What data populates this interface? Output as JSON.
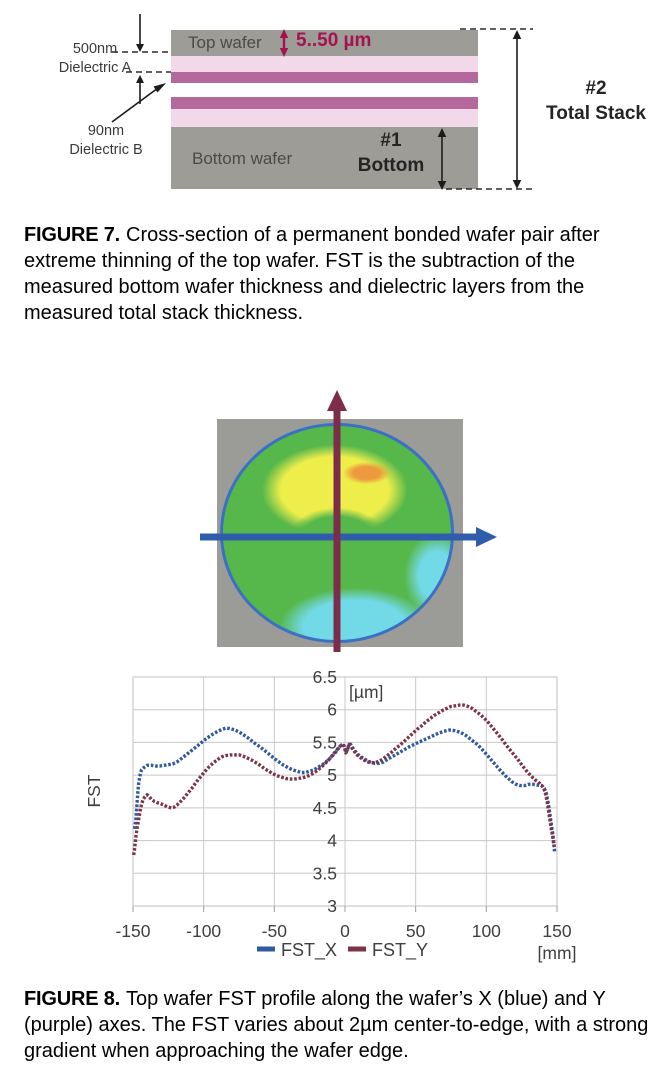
{
  "colors": {
    "wafer-gray": "#9d9c97",
    "pink-light": "#f1d9e9",
    "pink-dark": "#b4689c",
    "crimson": "#a5134f",
    "label-dark": "#3a3a3a",
    "map-gray": "#9b9b97",
    "map-green": "#56b74b",
    "map-yellow": "#eeee4b",
    "map-orange": "#ec9a3d",
    "map-cyan": "#72d9e6",
    "map-rim": "#3a70c6",
    "map-x-arrow": "#2f5dab",
    "map-y-arrow": "#7b2d4a",
    "diagram-arrow": "#1c1c1c"
  },
  "figure7": {
    "labels": {
      "dim_500nm": "500nm",
      "dielectric_a": "Dielectric A",
      "dim_90nm": "90nm",
      "dielectric_b": "Dielectric B",
      "top_wafer": "Top wafer",
      "thickness_range": "5..50 µm",
      "bottom_wafer": "Bottom wafer",
      "num1": "#1",
      "bottom": "Bottom",
      "num2": "#2",
      "total_stack": "Total Stack"
    },
    "caption": {
      "label": "FIGURE 7.",
      "text": "Cross-section of a permanent bonded wafer pair after extreme thinning of the top wafer. FST is the subtraction of the measured bottom wafer thickness and dielectric layers from the measured total stack thickness."
    }
  },
  "figure8": {
    "caption": {
      "label": "FIGURE 8.",
      "text": "Top wafer FST profile along the wafer’s X (blue) and Y (purple) axes. The FST varies about 2µm center-to-edge, with a strong gradient when approaching the wafer edge."
    }
  },
  "chart_data": {
    "type": "scatter",
    "title": "",
    "xlabel": "[mm]",
    "ylabel": "FST",
    "y_unit_label": "[µm]",
    "xlim": [
      -150,
      150
    ],
    "ylim": [
      3,
      6.5
    ],
    "x_ticks": [
      -150,
      -100,
      -50,
      0,
      50,
      100,
      150
    ],
    "y_ticks": [
      3,
      3.5,
      4,
      4.5,
      5,
      5.5,
      6,
      6.5
    ],
    "grid": true,
    "legend_position": "bottom",
    "series": [
      {
        "name": "FST_X",
        "color": "#30599e",
        "points": [
          [
            -149,
            4.18
          ],
          [
            -148,
            4.3
          ],
          [
            -147.5,
            4.45
          ],
          [
            -147,
            4.6
          ],
          [
            -146.5,
            4.75
          ],
          [
            -146,
            4.88
          ],
          [
            -145,
            5.0
          ],
          [
            -144,
            5.08
          ],
          [
            -142,
            5.12
          ],
          [
            -140,
            5.15
          ],
          [
            -137,
            5.15
          ],
          [
            -134,
            5.14
          ],
          [
            -131,
            5.14
          ],
          [
            -128,
            5.15
          ],
          [
            -125,
            5.16
          ],
          [
            -122,
            5.17
          ],
          [
            -119,
            5.2
          ],
          [
            -116,
            5.25
          ],
          [
            -113,
            5.3
          ],
          [
            -110,
            5.35
          ],
          [
            -106,
            5.42
          ],
          [
            -102,
            5.49
          ],
          [
            -98,
            5.56
          ],
          [
            -94,
            5.62
          ],
          [
            -90,
            5.67
          ],
          [
            -87,
            5.7
          ],
          [
            -84,
            5.72
          ],
          [
            -81,
            5.71
          ],
          [
            -78,
            5.69
          ],
          [
            -75,
            5.66
          ],
          [
            -72,
            5.62
          ],
          [
            -68,
            5.56
          ],
          [
            -64,
            5.49
          ],
          [
            -60,
            5.43
          ],
          [
            -56,
            5.36
          ],
          [
            -52,
            5.29
          ],
          [
            -48,
            5.22
          ],
          [
            -44,
            5.16
          ],
          [
            -40,
            5.11
          ],
          [
            -37,
            5.08
          ],
          [
            -34,
            5.06
          ],
          [
            -31,
            5.04
          ],
          [
            -28,
            5.04
          ],
          [
            -25,
            5.06
          ],
          [
            -22,
            5.08
          ],
          [
            -19,
            5.12
          ],
          [
            -16,
            5.16
          ],
          [
            -13,
            5.21
          ],
          [
            -10,
            5.27
          ],
          [
            -7,
            5.34
          ],
          [
            -5,
            5.4
          ],
          [
            -3,
            5.45
          ],
          [
            -1.5,
            5.48
          ],
          [
            -0.5,
            5.44
          ],
          [
            0.5,
            5.35
          ],
          [
            1.5,
            5.38
          ],
          [
            3,
            5.48
          ],
          [
            4,
            5.47
          ],
          [
            5,
            5.43
          ],
          [
            7,
            5.37
          ],
          [
            9,
            5.32
          ],
          [
            12,
            5.27
          ],
          [
            15,
            5.23
          ],
          [
            18,
            5.2
          ],
          [
            21,
            5.18
          ],
          [
            24,
            5.18
          ],
          [
            27,
            5.2
          ],
          [
            30,
            5.24
          ],
          [
            34,
            5.29
          ],
          [
            38,
            5.34
          ],
          [
            42,
            5.39
          ],
          [
            46,
            5.44
          ],
          [
            50,
            5.48
          ],
          [
            54,
            5.52
          ],
          [
            58,
            5.56
          ],
          [
            62,
            5.6
          ],
          [
            66,
            5.64
          ],
          [
            70,
            5.67
          ],
          [
            74,
            5.69
          ],
          [
            78,
            5.68
          ],
          [
            82,
            5.65
          ],
          [
            86,
            5.6
          ],
          [
            90,
            5.53
          ],
          [
            94,
            5.46
          ],
          [
            98,
            5.37
          ],
          [
            102,
            5.27
          ],
          [
            106,
            5.17
          ],
          [
            110,
            5.07
          ],
          [
            114,
            4.98
          ],
          [
            118,
            4.9
          ],
          [
            121,
            4.86
          ],
          [
            124,
            4.84
          ],
          [
            127,
            4.84
          ],
          [
            130,
            4.86
          ],
          [
            133,
            4.86
          ],
          [
            136,
            4.85
          ],
          [
            139,
            4.84
          ],
          [
            141,
            4.8
          ],
          [
            142.5,
            4.72
          ],
          [
            144,
            4.55
          ],
          [
            145,
            4.4
          ],
          [
            146,
            4.25
          ],
          [
            147,
            4.1
          ],
          [
            147.8,
            3.95
          ],
          [
            148.3,
            3.82
          ]
        ]
      },
      {
        "name": "FST_Y",
        "color": "#7c3247",
        "points": [
          [
            -149.5,
            3.78
          ],
          [
            -149,
            3.85
          ],
          [
            -148.5,
            3.95
          ],
          [
            -148,
            4.05
          ],
          [
            -147,
            4.2
          ],
          [
            -146,
            4.33
          ],
          [
            -145,
            4.45
          ],
          [
            -144,
            4.55
          ],
          [
            -143,
            4.62
          ],
          [
            -141.5,
            4.67
          ],
          [
            -140,
            4.7
          ],
          [
            -138.5,
            4.67
          ],
          [
            -137,
            4.63
          ],
          [
            -135,
            4.6
          ],
          [
            -133,
            4.58
          ],
          [
            -131,
            4.57
          ],
          [
            -129,
            4.55
          ],
          [
            -127,
            4.53
          ],
          [
            -125,
            4.51
          ],
          [
            -123,
            4.5
          ],
          [
            -121,
            4.51
          ],
          [
            -119,
            4.54
          ],
          [
            -117,
            4.58
          ],
          [
            -114,
            4.65
          ],
          [
            -111,
            4.73
          ],
          [
            -108,
            4.81
          ],
          [
            -105,
            4.9
          ],
          [
            -102,
            4.98
          ],
          [
            -99,
            5.06
          ],
          [
            -96,
            5.13
          ],
          [
            -93,
            5.19
          ],
          [
            -90,
            5.24
          ],
          [
            -87,
            5.28
          ],
          [
            -84,
            5.3
          ],
          [
            -81,
            5.31
          ],
          [
            -78,
            5.31
          ],
          [
            -75,
            5.31
          ],
          [
            -72,
            5.29
          ],
          [
            -69,
            5.26
          ],
          [
            -66,
            5.23
          ],
          [
            -63,
            5.19
          ],
          [
            -60,
            5.15
          ],
          [
            -57,
            5.1
          ],
          [
            -54,
            5.06
          ],
          [
            -51,
            5.02
          ],
          [
            -48,
            4.99
          ],
          [
            -45,
            4.97
          ],
          [
            -42,
            4.95
          ],
          [
            -39,
            4.94
          ],
          [
            -36,
            4.94
          ],
          [
            -33,
            4.95
          ],
          [
            -30,
            4.96
          ],
          [
            -27,
            4.98
          ],
          [
            -24,
            5.01
          ],
          [
            -21,
            5.05
          ],
          [
            -18,
            5.1
          ],
          [
            -15,
            5.16
          ],
          [
            -12,
            5.22
          ],
          [
            -9,
            5.3
          ],
          [
            -6,
            5.38
          ],
          [
            -4,
            5.43
          ],
          [
            -2,
            5.47
          ],
          [
            -0.5,
            5.44
          ],
          [
            0.5,
            5.34
          ],
          [
            1.5,
            5.37
          ],
          [
            3,
            5.47
          ],
          [
            4,
            5.45
          ],
          [
            5,
            5.41
          ],
          [
            7,
            5.35
          ],
          [
            9,
            5.3
          ],
          [
            12,
            5.25
          ],
          [
            15,
            5.21
          ],
          [
            18,
            5.19
          ],
          [
            21,
            5.19
          ],
          [
            24,
            5.21
          ],
          [
            27,
            5.25
          ],
          [
            30,
            5.3
          ],
          [
            33,
            5.35
          ],
          [
            36,
            5.41
          ],
          [
            39,
            5.46
          ],
          [
            42,
            5.52
          ],
          [
            45,
            5.58
          ],
          [
            48,
            5.64
          ],
          [
            51,
            5.7
          ],
          [
            54,
            5.75
          ],
          [
            57,
            5.81
          ],
          [
            60,
            5.86
          ],
          [
            63,
            5.91
          ],
          [
            66,
            5.95
          ],
          [
            69,
            5.99
          ],
          [
            72,
            6.02
          ],
          [
            75,
            6.05
          ],
          [
            78,
            6.06
          ],
          [
            81,
            6.07
          ],
          [
            84,
            6.07
          ],
          [
            87,
            6.05
          ],
          [
            90,
            6.02
          ],
          [
            93,
            5.97
          ],
          [
            96,
            5.92
          ],
          [
            99,
            5.86
          ],
          [
            102,
            5.79
          ],
          [
            105,
            5.71
          ],
          [
            108,
            5.63
          ],
          [
            111,
            5.55
          ],
          [
            114,
            5.46
          ],
          [
            117,
            5.38
          ],
          [
            120,
            5.3
          ],
          [
            123,
            5.22
          ],
          [
            126,
            5.13
          ],
          [
            129,
            5.05
          ],
          [
            132,
            4.98
          ],
          [
            135,
            4.92
          ],
          [
            138,
            4.87
          ],
          [
            140,
            4.82
          ],
          [
            141.5,
            4.75
          ],
          [
            143,
            4.6
          ],
          [
            144,
            4.46
          ],
          [
            145,
            4.32
          ],
          [
            146,
            4.18
          ],
          [
            147,
            4.05
          ],
          [
            147.7,
            3.95
          ],
          [
            148,
            3.9
          ]
        ]
      }
    ]
  }
}
